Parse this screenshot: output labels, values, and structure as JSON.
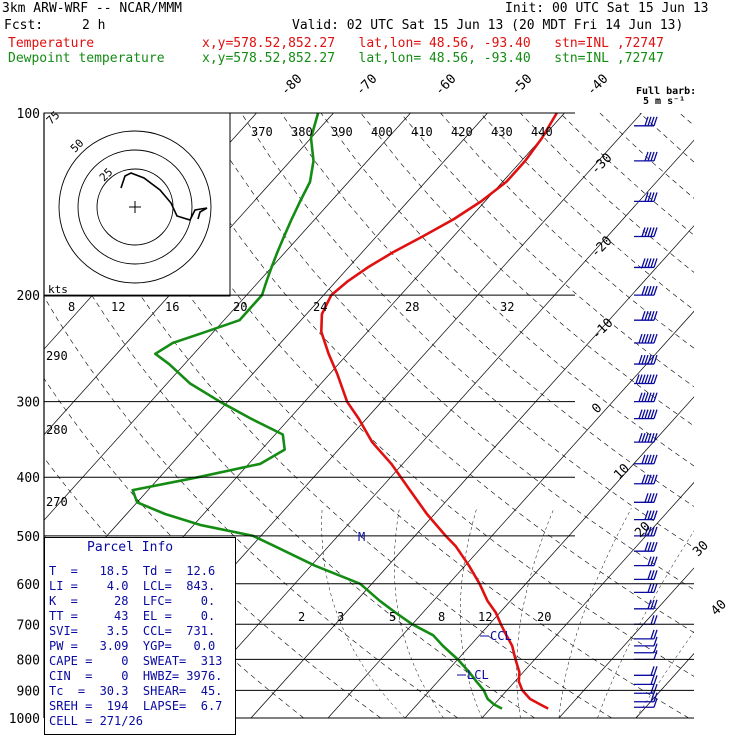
{
  "header": {
    "model": "3km ARW-WRF -- NCAR/MMM",
    "init": "Init: 00 UTC Sat 15 Jun 13",
    "fcst_label": "Fcst:",
    "fcst_value": "2 h",
    "valid": "Valid: 02 UTC Sat 15 Jun 13 (20 MDT Fri 14 Jun 13)",
    "temp_name": "Temperature",
    "temp_loc": "x,y=578.52,852.27   lat,lon= 48.56, -93.40   stn=INL ,72747",
    "dew_name": "Dewpoint temperature",
    "dew_loc": "x,y=578.52,852.27   lat,lon= 48.56, -93.40   stn=INL ,72747"
  },
  "colors": {
    "temperature": "#e01010",
    "dewpoint": "#148c14",
    "parcel_text": "#0a0aa0",
    "lines": "#000000"
  },
  "barb_legend": {
    "title": "Full barb:",
    "value": "5 m s⁻¹"
  },
  "hodograph": {
    "units": "kts",
    "ring_labels": [
      "75",
      "50",
      "25"
    ]
  },
  "levels_labels": [
    "M",
    "CCL",
    "LCL"
  ],
  "parcel": {
    "title": "Parcel Info",
    "rows": [
      "T  =   18.5  Td =  12.6",
      "LI =    4.0  LCL=  843.",
      "K  =     28  LFC=    0.",
      "TT =     43  EL =    0.",
      "SVI=    3.5  CCL=  731.",
      "PW =   3.09  YGP=   0.0",
      "CAPE =    0  SWEAT=  313",
      "CIN  =    0  HWBZ= 3976.",
      "Tc  =  30.3  SHEAR=  45.",
      "SREH =  194  LAPSE=  6.7",
      "CELL = 271/26"
    ]
  },
  "chart_data": {
    "type": "line",
    "title": "",
    "ylabel": "",
    "xlabel": "",
    "y_scale": "log-pressure",
    "ylim": [
      1000,
      100
    ],
    "pressure_ticks": [
      100,
      200,
      300,
      400,
      500,
      600,
      700,
      800,
      900,
      1000
    ],
    "pressure_tick_labels": [
      "100",
      "200",
      "300",
      "400",
      "500",
      "600",
      "700",
      "800",
      "900",
      "1000"
    ],
    "isotherm_labels": [
      "-80",
      "-70",
      "-60",
      "-50",
      "-40",
      "-30",
      "-20",
      "-10",
      "0",
      "10",
      "20",
      "30",
      "40"
    ],
    "isotherm_values": [
      -80,
      -70,
      -60,
      -50,
      -40,
      -30,
      -20,
      -10,
      0,
      10,
      20,
      30,
      40
    ],
    "theta_labels": [
      "370",
      "380",
      "390",
      "400",
      "410",
      "420",
      "430",
      "440"
    ],
    "theta_left_labels": [
      "290",
      "280",
      "270"
    ],
    "mixing_ratio_top_labels": [
      "8",
      "12",
      "16",
      "20",
      "24",
      "28",
      "32"
    ],
    "mixing_ratio_bottom_labels": [
      "2",
      "3",
      "5",
      "8",
      "12",
      "20"
    ],
    "series": [
      {
        "name": "Temperature",
        "pressure": [
          965,
          950,
          930,
          900,
          870,
          840,
          800,
          760,
          730,
          700,
          670,
          640,
          600,
          560,
          520,
          500,
          460,
          420,
          380,
          350,
          320,
          300,
          270,
          250,
          230,
          215,
          200,
          190,
          180,
          170,
          160,
          150,
          140,
          130,
          120,
          110,
          100
        ],
        "temp_c": [
          17.5,
          16.0,
          14.0,
          12.0,
          10.5,
          9.5,
          7.5,
          5.5,
          3.5,
          1.5,
          -0.5,
          -3.0,
          -6.0,
          -9.5,
          -13.5,
          -16.0,
          -21.0,
          -26.0,
          -31.5,
          -36.5,
          -41.0,
          -44.5,
          -49.0,
          -52.5,
          -56.0,
          -58.0,
          -59.0,
          -58.5,
          -57.5,
          -56.0,
          -54.0,
          -52.0,
          -50.5,
          -49.5,
          -49.5,
          -50.0,
          -51.0
        ]
      },
      {
        "name": "Dewpoint temperature",
        "pressure": [
          965,
          950,
          930,
          900,
          870,
          840,
          800,
          760,
          730,
          700,
          670,
          640,
          600,
          560,
          520,
          500,
          480,
          460,
          440,
          420,
          400,
          380,
          360,
          340,
          320,
          300,
          280,
          260,
          250,
          240,
          230,
          220,
          210,
          200,
          190,
          180,
          170,
          160,
          150,
          140,
          130,
          120,
          110,
          100
        ],
        "temp_c": [
          11.5,
          10.0,
          8.5,
          7.0,
          5.0,
          3.0,
          0.0,
          -3.5,
          -6.0,
          -10.0,
          -13.5,
          -17.0,
          -21.5,
          -29.5,
          -37.0,
          -41.0,
          -49.0,
          -55.0,
          -60.0,
          -62.0,
          -55.0,
          -48.5,
          -47.0,
          -49.0,
          -55.0,
          -61.0,
          -67.0,
          -72.0,
          -75.0,
          -74.0,
          -71.0,
          -68.0,
          -68.0,
          -68.0,
          -69.0,
          -70.0,
          -71.0,
          -72.0,
          -73.0,
          -74.0,
          -75.0,
          -77.0,
          -80.0,
          -82.0
        ]
      }
    ],
    "wind_barbs": {
      "pressure": [
        960,
        940,
        910,
        880,
        850,
        800,
        780,
        760,
        740,
        700,
        660,
        620,
        590,
        560,
        530,
        500,
        470,
        440,
        410,
        380,
        350,
        320,
        300,
        280,
        260,
        240,
        220,
        200,
        180,
        160,
        140,
        120,
        105
      ],
      "speed_ms": [
        7,
        9,
        11,
        10,
        8,
        6,
        5,
        6,
        8,
        12,
        14,
        15,
        16,
        17,
        18,
        19,
        20,
        22,
        24,
        26,
        28,
        30,
        32,
        34,
        30,
        28,
        26,
        24,
        26,
        24,
        22,
        20,
        18
      ],
      "dir_deg": [
        190,
        200,
        210,
        220,
        230,
        240,
        245,
        250,
        255,
        260,
        265,
        270,
        270,
        270,
        270,
        270,
        270,
        270,
        270,
        270,
        270,
        270,
        270,
        270,
        270,
        270,
        270,
        270,
        270,
        270,
        270,
        270,
        270
      ]
    }
  }
}
